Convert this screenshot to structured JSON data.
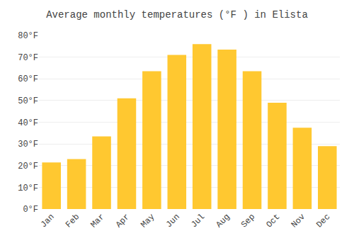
{
  "chart_data": {
    "type": "bar",
    "title": "Average monthly temperatures (°F ) in Elista",
    "categories": [
      "Jan",
      "Feb",
      "Mar",
      "Apr",
      "May",
      "Jun",
      "Jul",
      "Aug",
      "Sep",
      "Oct",
      "Nov",
      "Dec"
    ],
    "values": [
      21.5,
      23.0,
      33.5,
      51.0,
      63.5,
      71.0,
      76.0,
      73.5,
      63.5,
      49.0,
      37.5,
      29.0
    ],
    "color": "#FFC830",
    "ylim": [
      0,
      80
    ],
    "yticks": [
      {
        "value": 0,
        "label": "0°F"
      },
      {
        "value": 10,
        "label": "10°F"
      },
      {
        "value": 20,
        "label": "20°F"
      },
      {
        "value": 30,
        "label": "30°F"
      },
      {
        "value": 40,
        "label": "40°F"
      },
      {
        "value": 50,
        "label": "50°F"
      },
      {
        "value": 60,
        "label": "60°F"
      },
      {
        "value": 70,
        "label": "70°F"
      },
      {
        "value": 80,
        "label": "80°F"
      }
    ],
    "grid": true
  }
}
